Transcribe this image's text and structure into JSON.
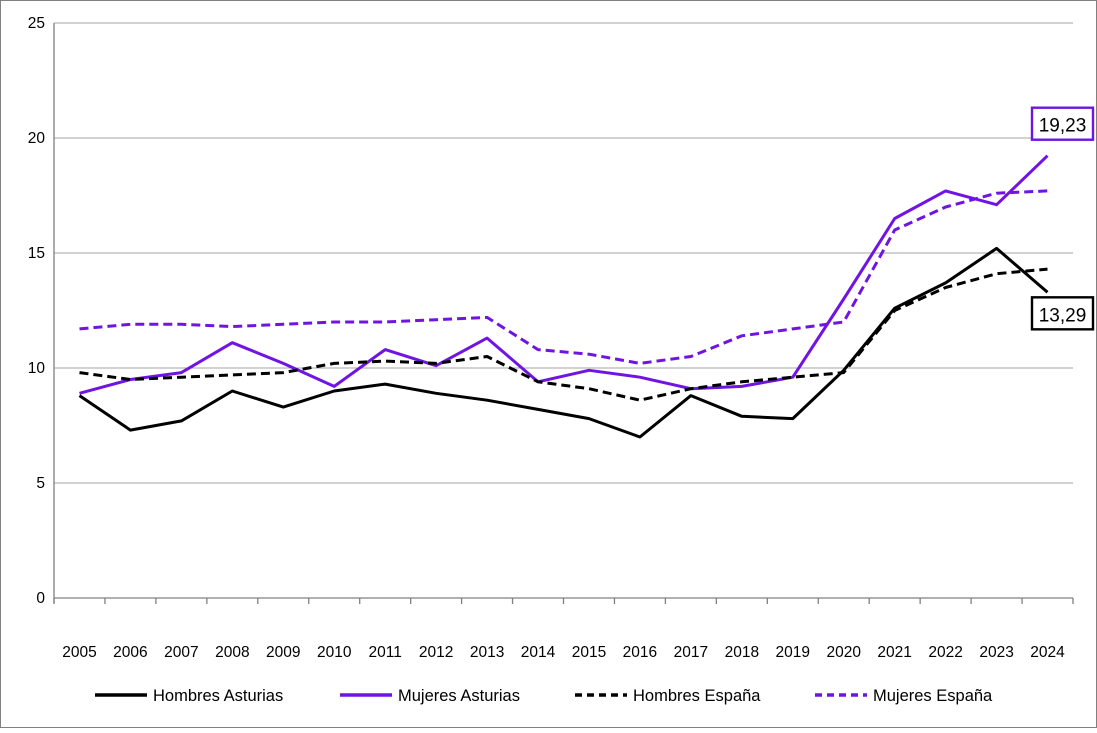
{
  "figure": {
    "background": "#FFFFFF",
    "border_color": "#808080"
  },
  "chart_data": {
    "type": "line",
    "title": "",
    "xlabel": "",
    "ylabel": "",
    "categories": [
      "2005",
      "2006",
      "2007",
      "2008",
      "2009",
      "2010",
      "2011",
      "2012",
      "2013",
      "2014",
      "2015",
      "2016",
      "2017",
      "2018",
      "2019",
      "2020",
      "2021",
      "2022",
      "2023",
      "2024"
    ],
    "series": [
      {
        "name": "Hombres Asturias",
        "color": "#000000",
        "dash": "solid",
        "values": [
          8.8,
          7.3,
          7.7,
          9.0,
          8.3,
          9.0,
          9.3,
          8.9,
          8.6,
          8.2,
          7.8,
          7.0,
          8.8,
          7.9,
          7.8,
          9.9,
          12.6,
          13.7,
          15.2,
          13.29
        ]
      },
      {
        "name": "Mujeres Asturias",
        "color": "#7014E4",
        "dash": "solid",
        "values": [
          8.9,
          9.5,
          9.8,
          11.1,
          10.2,
          9.2,
          10.8,
          10.1,
          11.3,
          9.4,
          9.9,
          9.6,
          9.1,
          9.2,
          9.6,
          13.0,
          16.5,
          17.7,
          17.1,
          19.23
        ]
      },
      {
        "name": "Hombres España",
        "color": "#000000",
        "dash": "dashed",
        "values": [
          9.8,
          9.5,
          9.6,
          9.7,
          9.8,
          10.2,
          10.3,
          10.2,
          10.5,
          9.4,
          9.1,
          8.6,
          9.1,
          9.4,
          9.6,
          9.8,
          12.5,
          13.5,
          14.1,
          14.3
        ]
      },
      {
        "name": "Mujeres España",
        "color": "#7014E4",
        "dash": "dashed",
        "values": [
          11.7,
          11.9,
          11.9,
          11.8,
          11.9,
          12.0,
          12.0,
          12.1,
          12.2,
          10.8,
          10.6,
          10.2,
          10.5,
          11.4,
          11.7,
          12.0,
          16.0,
          17.0,
          17.6,
          17.7
        ]
      }
    ],
    "ylim": [
      0,
      25
    ],
    "yticks": [
      "0",
      "5",
      "10",
      "15",
      "20",
      "25"
    ],
    "grid": true,
    "gridline_color": "#A6A6A6",
    "axis_color": "#808080",
    "legend_position": "bottom",
    "annotations": [
      {
        "label": "19,23",
        "x": "2024",
        "value": 19.23,
        "series": "Mujeres Asturias",
        "color": "#7014E4"
      },
      {
        "label": "13,29",
        "x": "2024",
        "value": 13.29,
        "series": "Hombres Asturias",
        "color": "#000000"
      }
    ]
  }
}
